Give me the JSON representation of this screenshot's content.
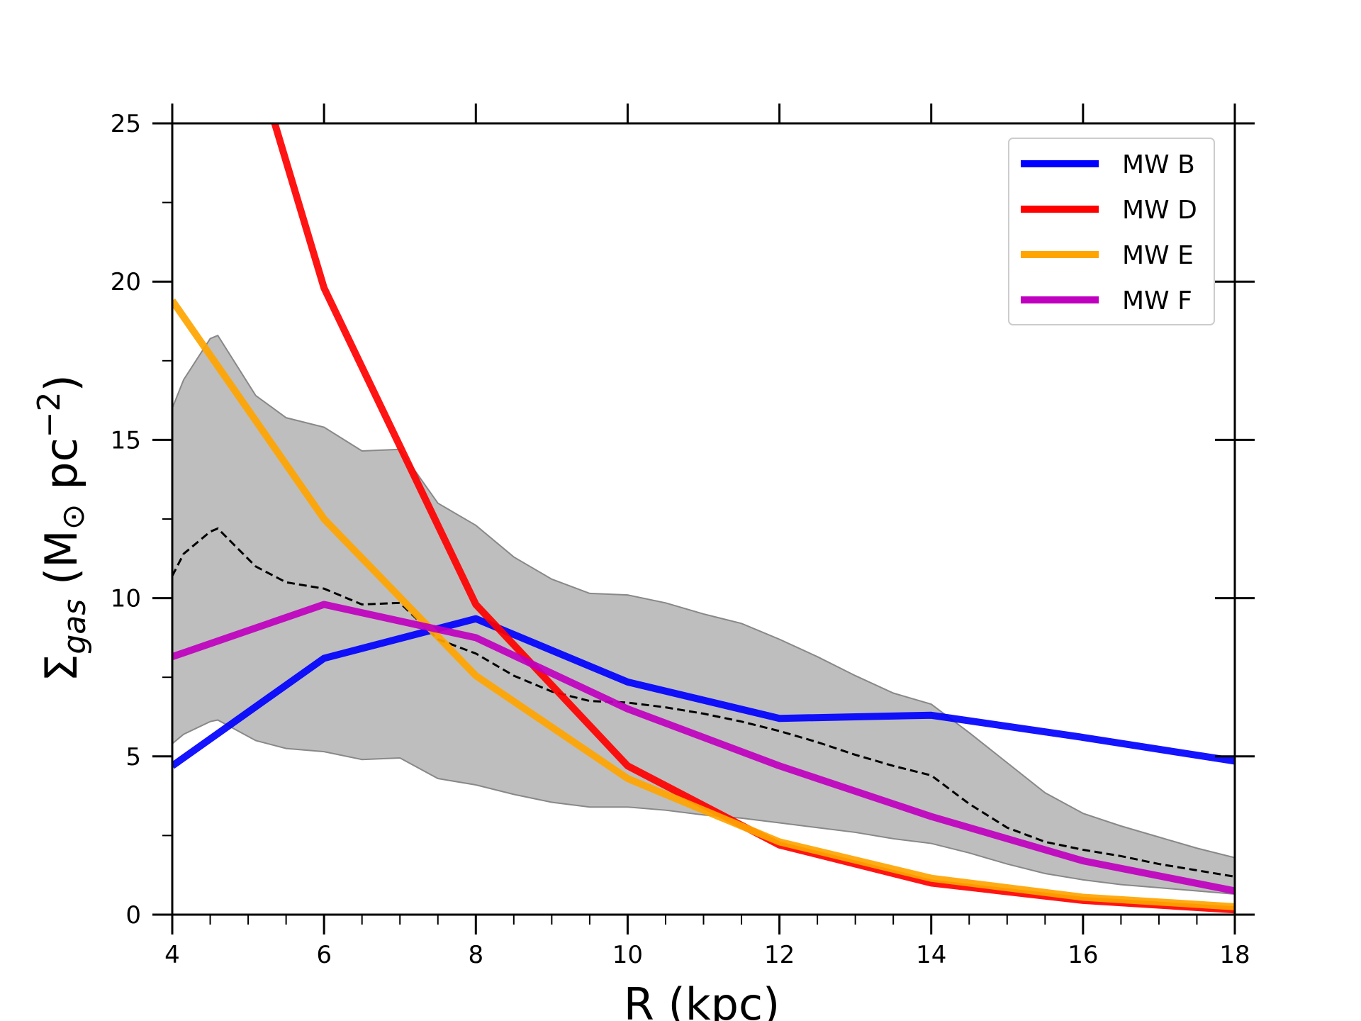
{
  "chart_data": {
    "type": "line",
    "title": "",
    "xlabel": "R (kpc)",
    "ylabel": {
      "sigma": "Σ",
      "subscript": "gas",
      "units_open": " (M",
      "sun": "⊙",
      "units_mid": "  pc",
      "exponent": "−2",
      "units_close": ")"
    },
    "xlim": [
      4,
      18
    ],
    "ylim": [
      0,
      25
    ],
    "xticks": [
      4,
      6,
      8,
      10,
      12,
      14,
      16,
      18
    ],
    "yticks": [
      0,
      5,
      10,
      15,
      20,
      25
    ],
    "legend_position": "top-right",
    "series": [
      {
        "name": "MW B",
        "color": "#0000ff",
        "x": [
          4,
          6,
          8,
          10,
          12,
          14,
          16,
          18
        ],
        "y": [
          4.7,
          8.1,
          9.35,
          7.35,
          6.2,
          6.3,
          5.6,
          4.85
        ]
      },
      {
        "name": "MW D",
        "color": "#ff0000",
        "x": [
          5.35,
          6,
          8,
          10,
          12,
          14,
          16,
          18
        ],
        "y": [
          25,
          19.8,
          9.8,
          4.7,
          2.2,
          1.0,
          0.45,
          0.15
        ]
      },
      {
        "name": "MW E",
        "color": "#ffa500",
        "x": [
          4,
          6,
          8,
          10,
          12,
          14,
          16,
          18
        ],
        "y": [
          19.4,
          12.5,
          7.55,
          4.3,
          2.3,
          1.15,
          0.55,
          0.25
        ]
      },
      {
        "name": "MW F",
        "color": "#bf00bf",
        "x": [
          4,
          6,
          8,
          10,
          12,
          14,
          16,
          18
        ],
        "y": [
          8.15,
          9.8,
          8.75,
          6.5,
          4.7,
          3.1,
          1.7,
          0.75
        ]
      }
    ],
    "observed_band": {
      "fill": "#bebebe",
      "edge": "#888888",
      "x": [
        4,
        4.15,
        4.5,
        4.6,
        5.1,
        5.5,
        6.0,
        6.5,
        7.0,
        7.5,
        8.0,
        8.5,
        9.0,
        9.5,
        10.0,
        10.5,
        11.0,
        11.5,
        12.0,
        12.5,
        13.0,
        13.5,
        14.0,
        14.5,
        15.0,
        15.5,
        16.0,
        16.5,
        17.0,
        17.5,
        18.0
      ],
      "lower": [
        5.4,
        5.7,
        6.1,
        6.15,
        5.5,
        5.25,
        5.15,
        4.9,
        4.95,
        4.3,
        4.1,
        3.8,
        3.55,
        3.4,
        3.4,
        3.3,
        3.15,
        3.05,
        2.9,
        2.75,
        2.6,
        2.4,
        2.25,
        1.95,
        1.6,
        1.3,
        1.1,
        0.95,
        0.85,
        0.75,
        0.65
      ],
      "upper": [
        16.0,
        16.9,
        18.2,
        18.3,
        16.4,
        15.7,
        15.4,
        14.65,
        14.7,
        13.0,
        12.3,
        11.3,
        10.6,
        10.15,
        10.1,
        9.85,
        9.5,
        9.2,
        8.7,
        8.15,
        7.55,
        7.0,
        6.65,
        5.75,
        4.8,
        3.85,
        3.2,
        2.8,
        2.45,
        2.1,
        1.8
      ],
      "median_color": "#000000",
      "median": [
        10.7,
        11.4,
        12.1,
        12.2,
        11.0,
        10.5,
        10.3,
        9.8,
        9.85,
        8.7,
        8.25,
        7.55,
        7.05,
        6.75,
        6.7,
        6.55,
        6.35,
        6.1,
        5.8,
        5.45,
        5.05,
        4.7,
        4.4,
        3.5,
        2.75,
        2.3,
        2.05,
        1.85,
        1.6,
        1.4,
        1.2
      ]
    }
  }
}
